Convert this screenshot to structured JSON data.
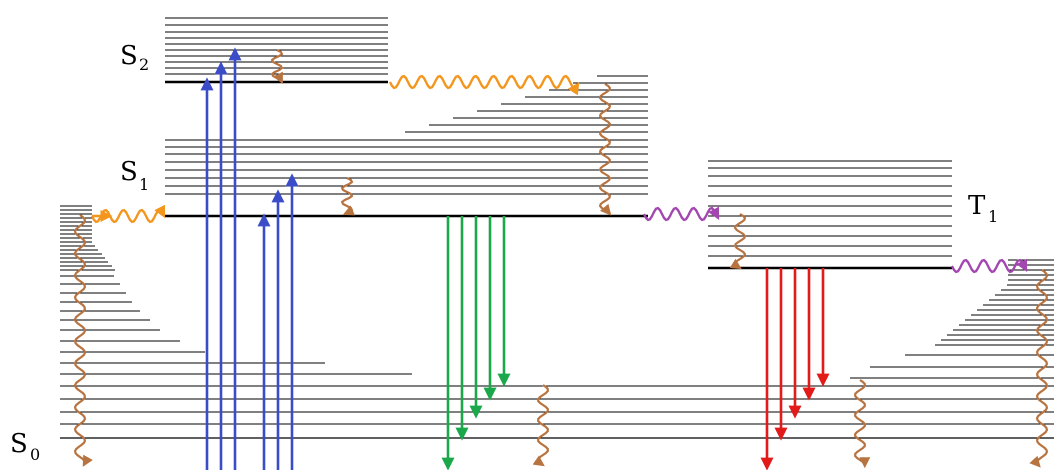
{
  "labels": {
    "s2": {
      "letter": "S",
      "sub": "2"
    },
    "s1": {
      "letter": "S",
      "sub": "1"
    },
    "s0": {
      "letter": "S",
      "sub": "0"
    },
    "t1": {
      "letter": "T",
      "sub": "1"
    }
  },
  "colors": {
    "absorption": "#3b4cc8",
    "fluorescence": "#1aa84a",
    "phosphorescence": "#e21a1a",
    "internal_conversion": "#f3961e",
    "intersystem_crossing": "#a347b0",
    "vibrational_relaxation": "#b87440",
    "levels": "#000000"
  }
}
